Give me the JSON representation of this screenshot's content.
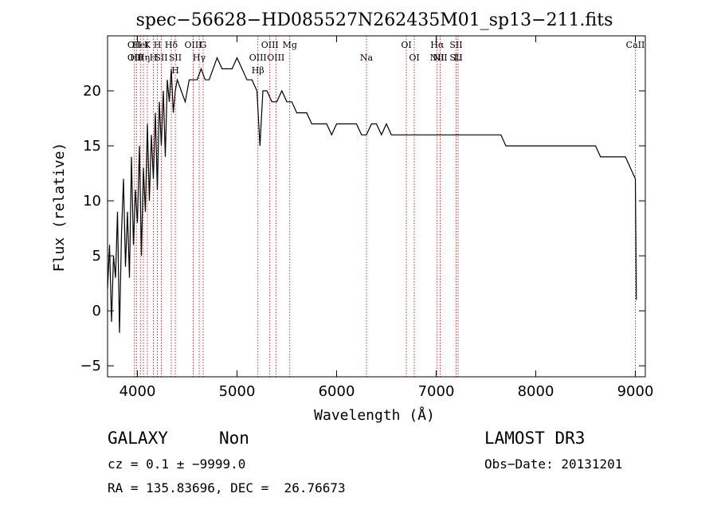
{
  "chart_data": {
    "type": "line",
    "title": "spec−56628−HD085527N262435M01_sp13−211.fits",
    "xlabel": "Wavelength (Å)",
    "ylabel": "Flux (relative)",
    "xlim": [
      3700,
      9100
    ],
    "ylim": [
      -6,
      25
    ],
    "xticks": [
      {
        "v": 4000,
        "label": "4000"
      },
      {
        "v": 5000,
        "label": "5000"
      },
      {
        "v": 6000,
        "label": "6000"
      },
      {
        "v": 7000,
        "label": "7000"
      },
      {
        "v": 8000,
        "label": "8000"
      },
      {
        "v": 9000,
        "label": "9000"
      }
    ],
    "yticks": [
      {
        "v": -5,
        "label": "−5"
      },
      {
        "v": 0,
        "label": "0"
      },
      {
        "v": 5,
        "label": "5"
      },
      {
        "v": 10,
        "label": "10"
      },
      {
        "v": 15,
        "label": "15"
      },
      {
        "v": 20,
        "label": "20"
      }
    ],
    "grid": false,
    "series": [
      {
        "color": "#000000",
        "x": [
          3700,
          3720,
          3740,
          3760,
          3780,
          3800,
          3820,
          3840,
          3860,
          3880,
          3900,
          3920,
          3940,
          3960,
          3980,
          4000,
          4020,
          4040,
          4060,
          4080,
          4100,
          4120,
          4140,
          4160,
          4180,
          4200,
          4220,
          4240,
          4260,
          4280,
          4300,
          4320,
          4340,
          4360,
          4380,
          4400,
          4440,
          4480,
          4520,
          4560,
          4600,
          4640,
          4680,
          4720,
          4760,
          4800,
          4850,
          4900,
          4950,
          5000,
          5050,
          5100,
          5150,
          5200,
          5230,
          5260,
          5300,
          5350,
          5400,
          5450,
          5500,
          5550,
          5600,
          5650,
          5700,
          5750,
          5800,
          5850,
          5900,
          5950,
          6000,
          6050,
          6100,
          6150,
          6200,
          6250,
          6300,
          6350,
          6400,
          6450,
          6500,
          6550,
          6600,
          6650,
          6700,
          6750,
          6800,
          6850,
          6900,
          6950,
          7000,
          7050,
          7100,
          7150,
          7200,
          7250,
          7300,
          7350,
          7400,
          7450,
          7500,
          7550,
          7600,
          7650,
          7700,
          7750,
          7800,
          7850,
          7900,
          7950,
          8000,
          8050,
          8100,
          8150,
          8200,
          8250,
          8300,
          8350,
          8400,
          8450,
          8500,
          8550,
          8600,
          8650,
          8700,
          8750,
          8800,
          8850,
          8900,
          8950,
          9000,
          9010
        ],
        "y": [
          2,
          6,
          -1,
          5,
          3,
          9,
          -2,
          7,
          12,
          4,
          9,
          3,
          14,
          6,
          11,
          8,
          15,
          5,
          13,
          9,
          17,
          10,
          16,
          12,
          18,
          11,
          19,
          15,
          20,
          14,
          21,
          19,
          22,
          18,
          20,
          21,
          20,
          19,
          21,
          21,
          21,
          22,
          21,
          21,
          22,
          23,
          22,
          22,
          22,
          23,
          22,
          21,
          21,
          20,
          15,
          20,
          20,
          19,
          19,
          20,
          19,
          19,
          18,
          18,
          18,
          17,
          17,
          17,
          17,
          16,
          17,
          17,
          17,
          17,
          17,
          16,
          16,
          17,
          17,
          16,
          17,
          16,
          16,
          16,
          16,
          16,
          16,
          16,
          16,
          16,
          16,
          16,
          16,
          16,
          16,
          16,
          16,
          16,
          16,
          16,
          16,
          16,
          16,
          16,
          15,
          15,
          15,
          15,
          15,
          15,
          15,
          15,
          15,
          15,
          15,
          15,
          15,
          15,
          15,
          15,
          15,
          15,
          15,
          14,
          14,
          14,
          14,
          14,
          14,
          13,
          12,
          1
        ]
      }
    ],
    "line_markers": [
      {
        "x": 3970,
        "labels": [
          "OII",
          "OII"
        ]
      },
      {
        "x": 3990,
        "labels": [
          "Hθ"
        ]
      },
      {
        "x": 4030,
        "labels": [
          "HeI"
        ]
      },
      {
        "x": 4060,
        "labels": [
          "Hη"
        ]
      },
      {
        "x": 4100,
        "labels": [
          "K"
        ]
      },
      {
        "x": 4160,
        "labels": [
          "H"
        ]
      },
      {
        "x": 4200,
        "labels": [
          "H"
        ]
      },
      {
        "x": 4240,
        "labels": [
          "SII"
        ]
      },
      {
        "x": 4340,
        "labels": [
          "Hδ"
        ]
      },
      {
        "x": 4380,
        "labels": [
          "SII",
          "H"
        ]
      },
      {
        "x": 4560,
        "labels": [
          "OIII"
        ]
      },
      {
        "x": 4620,
        "labels": [
          "Hγ"
        ]
      },
      {
        "x": 4660,
        "labels": [
          "G"
        ]
      },
      {
        "x": 5210,
        "labels": [
          "OIII",
          "Hβ"
        ]
      },
      {
        "x": 5330,
        "labels": [
          "OIII"
        ]
      },
      {
        "x": 5390,
        "labels": [
          "OIII"
        ]
      },
      {
        "x": 5530,
        "labels": [
          "Mg"
        ]
      },
      {
        "x": 6300,
        "labels": [
          "Na"
        ]
      },
      {
        "x": 6700,
        "labels": [
          "OI"
        ]
      },
      {
        "x": 6780,
        "labels": [
          "OI"
        ]
      },
      {
        "x": 7010,
        "labels": [
          "Hα",
          "NII"
        ]
      },
      {
        "x": 7040,
        "labels": [
          "NII"
        ]
      },
      {
        "x": 7200,
        "labels": [
          "SII",
          "SII"
        ]
      },
      {
        "x": 7220,
        "labels": [
          "Li"
        ]
      },
      {
        "x": 9000,
        "labels": [
          "CaII"
        ]
      }
    ]
  },
  "info": {
    "object_class": "GALAXY",
    "subclass": "Non",
    "survey": "LAMOST DR3",
    "redshift": "cz = 0.1 ± −9999.0",
    "obs_date": "Obs−Date: 20131201",
    "coords": "RA = 135.83696, DEC =  26.76673"
  }
}
